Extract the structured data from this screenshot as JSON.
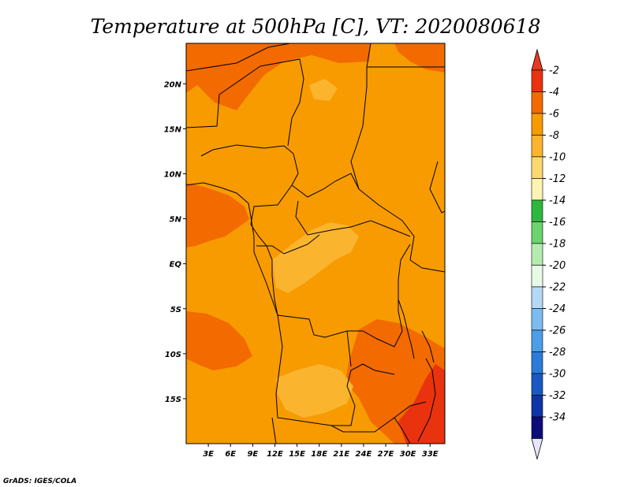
{
  "chart_data": {
    "type": "heatmap",
    "title": "Temperature at 500hPa [C], VT: 2020080618",
    "variable": "Temperature at 500hPa",
    "units": "C",
    "valid_time": "2020080618",
    "xlabel": "",
    "ylabel": "",
    "lon_range": [
      0,
      35
    ],
    "lat_range": [
      -20,
      24.5
    ],
    "x_ticks": [
      {
        "lon": 3,
        "label": "3E"
      },
      {
        "lon": 6,
        "label": "6E"
      },
      {
        "lon": 9,
        "label": "9E"
      },
      {
        "lon": 12,
        "label": "12E"
      },
      {
        "lon": 15,
        "label": "15E"
      },
      {
        "lon": 18,
        "label": "18E"
      },
      {
        "lon": 21,
        "label": "21E"
      },
      {
        "lon": 24,
        "label": "24E"
      },
      {
        "lon": 27,
        "label": "27E"
      },
      {
        "lon": 30,
        "label": "30E"
      },
      {
        "lon": 33,
        "label": "33E"
      }
    ],
    "y_ticks": [
      {
        "lat": 20,
        "label": "20N"
      },
      {
        "lat": 15,
        "label": "15N"
      },
      {
        "lat": 10,
        "label": "10N"
      },
      {
        "lat": 5,
        "label": "5N"
      },
      {
        "lat": 0,
        "label": "EQ"
      },
      {
        "lat": -5,
        "label": "5S"
      },
      {
        "lat": -10,
        "label": "10S"
      },
      {
        "lat": -15,
        "label": "15S"
      }
    ],
    "colorbar": {
      "labels": [
        "-2",
        "-4",
        "-6",
        "-8",
        "-10",
        "-12",
        "-14",
        "-16",
        "-18",
        "-20",
        "-22",
        "-24",
        "-26",
        "-28",
        "-30",
        "-32",
        "-34"
      ],
      "colors": [
        "#e8330e",
        "#f26a00",
        "#f79b00",
        "#fbb42e",
        "#fcd870",
        "#fdf3b4",
        "#2eb83f",
        "#6bd46e",
        "#b4ecae",
        "#e6fae6",
        "#b4d8f5",
        "#7cbcf0",
        "#4c9ee6",
        "#2b7cd8",
        "#1a58c4",
        "#0f34a6",
        "#0c0c78"
      ],
      "over_color": "#e53b20",
      "under_color": "#e6e6fa"
    },
    "regions": [
      {
        "name": "domain-background",
        "value_range": [
          -6,
          -4
        ],
        "color": "#f79b00"
      },
      {
        "name": "northwest-warm",
        "value_range": [
          -4,
          -2
        ],
        "color": "#f26a00"
      },
      {
        "name": "northeast-warm",
        "value_range": [
          -4,
          -2
        ],
        "color": "#f26a00"
      },
      {
        "name": "west-coast-warm",
        "value_range": [
          -4,
          -2
        ],
        "color": "#f26a00"
      },
      {
        "name": "southwest-ocean-warm",
        "value_range": [
          -4,
          -2
        ],
        "color": "#f26a00"
      },
      {
        "name": "southeast-warm",
        "value_range": [
          -4,
          -2
        ],
        "color": "#f26a00"
      },
      {
        "name": "southeast-hot",
        "value_range": [
          -2,
          0
        ],
        "color": "#e8330e"
      },
      {
        "name": "central-cool",
        "value_range": [
          -8,
          -6
        ],
        "color": "#fbb42e"
      },
      {
        "name": "angola-cool",
        "value_range": [
          -8,
          -6
        ],
        "color": "#fbb42e"
      },
      {
        "name": "chad-cool",
        "value_range": [
          -8,
          -6
        ],
        "color": "#fbb42e"
      }
    ]
  },
  "credit": "GrADS: IGES/COLA"
}
